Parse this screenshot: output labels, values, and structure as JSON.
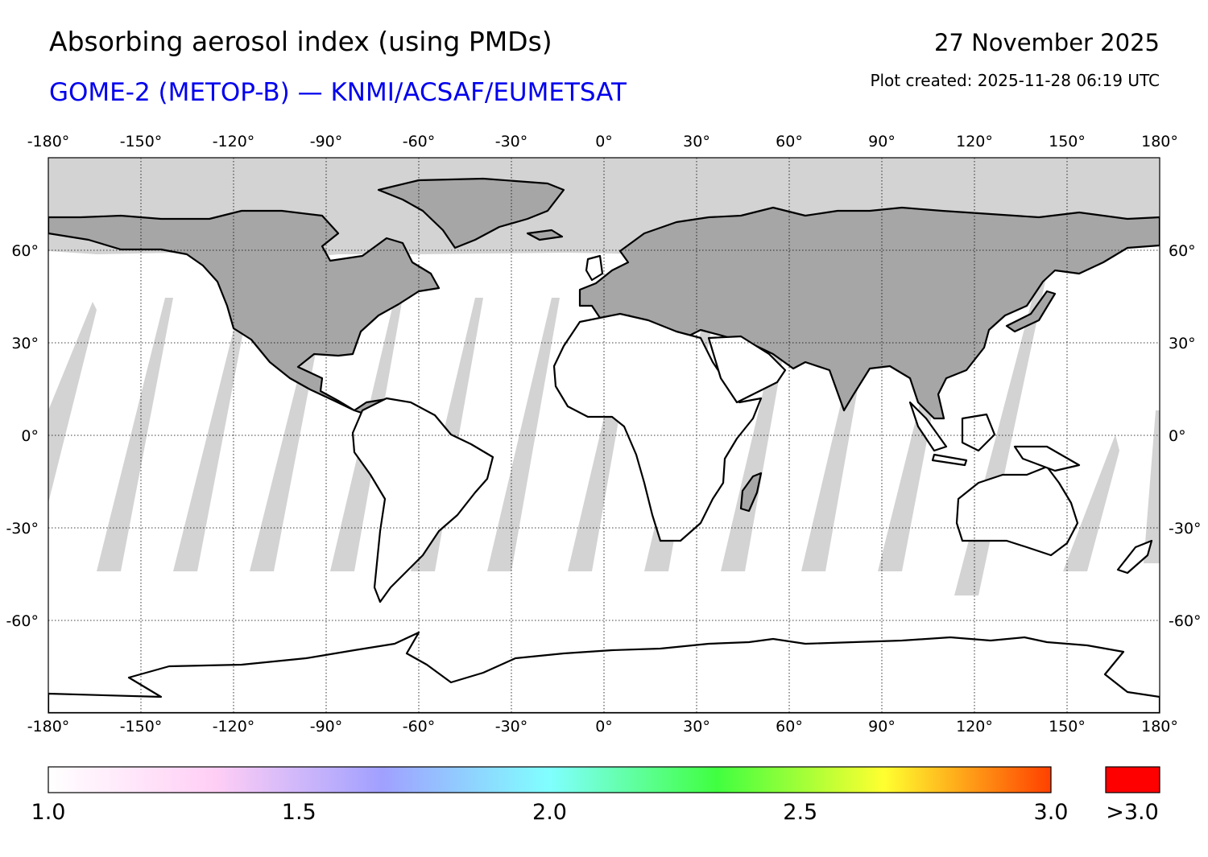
{
  "header": {
    "title": "Absorbing aerosol index (using PMDs)",
    "subtitle": "GOME-2 (METOP-B) — KNMI/ACSAF/EUMETSAT",
    "date": "27 November 2025",
    "plot_created": "Plot created: 2025-11-28 06:19 UTC"
  },
  "map": {
    "projection": "equirectangular",
    "lon_range": [
      -180,
      180
    ],
    "lat_range": [
      -90,
      90
    ],
    "lon_ticks": [
      "-180°",
      "-150°",
      "-120°",
      "-90°",
      "-60°",
      "-30°",
      "0°",
      "30°",
      "60°",
      "90°",
      "120°",
      "150°",
      "180°"
    ],
    "lat_ticks": [
      "60°",
      "30°",
      "0°",
      "-30°",
      "-60°"
    ],
    "colors": {
      "no_data": "#d3d3d3",
      "land_no_data": "#a6a6a6",
      "coast": "#000000",
      "grid": "#000000"
    }
  },
  "colorbar": {
    "min": 1.0,
    "max": 3.0,
    "labels": [
      "1.0",
      "1.5",
      "2.0",
      "2.5",
      "3.0"
    ],
    "overflow_label": ">3.0",
    "overflow_color": "#ff0000",
    "stops": [
      "#ffffff",
      "#ffcef5",
      "#a0a0ff",
      "#80ffff",
      "#40ff40",
      "#ffff30",
      "#ff4000"
    ]
  }
}
